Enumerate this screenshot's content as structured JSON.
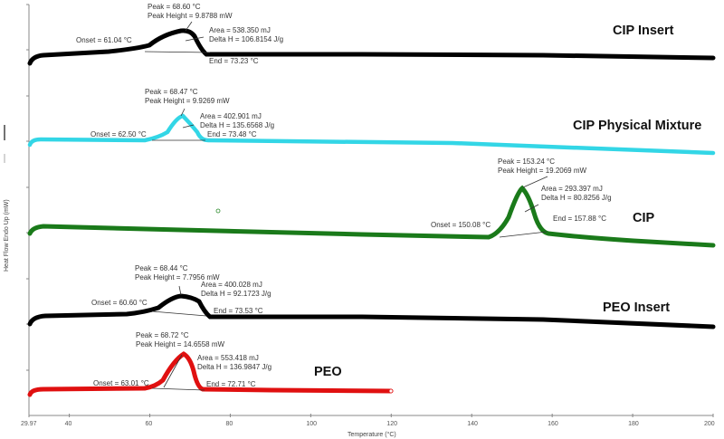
{
  "chart_data": {
    "type": "line",
    "title": "",
    "xlabel": "Temperature (°C)",
    "ylabel": "Heat Flow Endo Up (mW)",
    "xlim": [
      29.97,
      200
    ],
    "x_ticks": [
      "29.97",
      "40",
      "60",
      "80",
      "100",
      "120",
      "140",
      "160",
      "180",
      "200"
    ],
    "grid": false,
    "series": [
      {
        "name": "CIP Insert",
        "color": "#000000",
        "peak": {
          "peak": "Peak = 68.60 °C",
          "height": "Peak Height = 9.8788 mW",
          "area": "Area = 538.350 mJ",
          "delta_h": "Delta H = 106.8154 J/g",
          "onset": "Onset = 61.04 °C",
          "end": "End = 73.23 °C"
        },
        "values": {
          "peak_c": 68.6,
          "peak_height_mw": 9.8788,
          "area_mj": 538.35,
          "delta_h_jg": 106.8154,
          "onset_c": 61.04,
          "end_c": 73.23
        }
      },
      {
        "name": "CIP Physical Mixture",
        "color": "#33d6e6",
        "peak": {
          "peak": "Peak = 68.47 °C",
          "height": "Peak Height = 9.9269 mW",
          "area": "Area = 402.901 mJ",
          "delta_h": "Delta H = 135.6568 J/g",
          "onset": "Onset = 62.50 °C",
          "end": "End = 73.48 °C"
        },
        "values": {
          "peak_c": 68.47,
          "peak_height_mw": 9.9269,
          "area_mj": 402.901,
          "delta_h_jg": 135.6568,
          "onset_c": 62.5,
          "end_c": 73.48
        }
      },
      {
        "name": "CIP",
        "color": "#1a7a1a",
        "peak": {
          "peak": "Peak = 153.24 °C",
          "height": "Peak Height = 19.2069 mW",
          "area": "Area = 293.397 mJ",
          "delta_h": "Delta H = 80.8256 J/g",
          "onset": "Onset = 150.08 °C",
          "end": "End = 157.88 °C"
        },
        "values": {
          "peak_c": 153.24,
          "peak_height_mw": 19.2069,
          "area_mj": 293.397,
          "delta_h_jg": 80.8256,
          "onset_c": 150.08,
          "end_c": 157.88
        }
      },
      {
        "name": "PEO Insert",
        "color": "#000000",
        "peak": {
          "peak": "Peak = 68.44 °C",
          "height": "Peak Height = 7.7956 mW",
          "area": "Area = 400.028 mJ",
          "delta_h": "Delta H = 92.1723 J/g",
          "onset": "Onset = 60.60 °C",
          "end": "End = 73.53 °C"
        },
        "values": {
          "peak_c": 68.44,
          "peak_height_mw": 7.7956,
          "area_mj": 400.028,
          "delta_h_jg": 92.1723,
          "onset_c": 60.6,
          "end_c": 73.53
        }
      },
      {
        "name": "PEO",
        "color": "#e01010",
        "peak": {
          "peak": "Peak = 68.72 °C",
          "height": "Peak Height = 14.6558 mW",
          "area": "Area = 553.418 mJ",
          "delta_h": "Delta H = 136.9847 J/g",
          "onset": "Onset = 63.01 °C",
          "end": "End = 72.71 °C"
        },
        "values": {
          "peak_c": 68.72,
          "peak_height_mw": 14.6558,
          "area_mj": 553.418,
          "delta_h_jg": 136.9847,
          "onset_c": 63.01,
          "end_c": 72.71
        }
      }
    ],
    "legend_position": "inline labels right of curves"
  }
}
